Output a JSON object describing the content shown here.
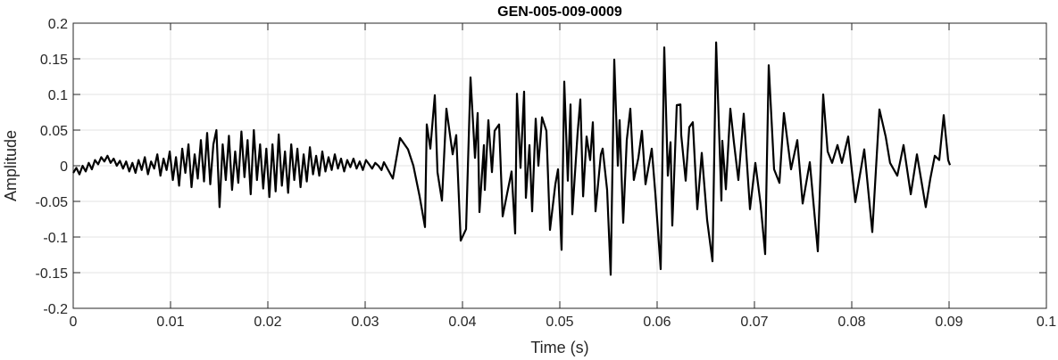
{
  "chart_data": {
    "type": "line",
    "title": "GEN-005-009-0009",
    "xlabel": "Time (s)",
    "ylabel": "Amplitude",
    "xlim": [
      0,
      0.1
    ],
    "ylim": [
      -0.2,
      0.2
    ],
    "grid": true,
    "x_ticks": [
      0,
      0.01,
      0.02,
      0.03,
      0.04,
      0.05,
      0.06,
      0.07,
      0.08,
      0.09,
      0.1
    ],
    "x_tick_labels": [
      "0",
      "0.01",
      "0.02",
      "0.03",
      "0.04",
      "0.05",
      "0.06",
      "0.07",
      "0.08",
      "0.09",
      "0.1"
    ],
    "y_ticks": [
      0.2,
      0.15,
      0.1,
      0.05,
      0,
      -0.05,
      -0.1,
      -0.15,
      -0.2
    ],
    "y_tick_labels": [
      "0.2",
      "0.15",
      "0.1",
      "0.05",
      "0",
      "-0.05",
      "-0.1",
      "-0.15",
      "-0.2"
    ],
    "line_color": "#000000",
    "grid_color": "#e3e3e3",
    "series": [
      {
        "points": [
          [
            0,
            -0.01
          ],
          [
            0.00032,
            -0.003
          ],
          [
            0.00064,
            -0.012
          ],
          [
            0.00096,
            0.0
          ],
          [
            0.00128,
            -0.008
          ],
          [
            0.0016,
            0.004
          ],
          [
            0.00192,
            -0.005
          ],
          [
            0.00224,
            0.008
          ],
          [
            0.00256,
            0.002
          ],
          [
            0.00288,
            0.012
          ],
          [
            0.0032,
            0.006
          ],
          [
            0.00352,
            0.014
          ],
          [
            0.00384,
            0.004
          ],
          [
            0.00416,
            0.01
          ],
          [
            0.00448,
            0.0
          ],
          [
            0.0048,
            0.007
          ],
          [
            0.00512,
            -0.004
          ],
          [
            0.00544,
            0.006
          ],
          [
            0.00576,
            -0.008
          ],
          [
            0.00608,
            0.004
          ],
          [
            0.0064,
            -0.01
          ],
          [
            0.00672,
            0.008
          ],
          [
            0.00704,
            -0.006
          ],
          [
            0.00736,
            0.012
          ],
          [
            0.00768,
            -0.012
          ],
          [
            0.008,
            0.006
          ],
          [
            0.00832,
            -0.004
          ],
          [
            0.00864,
            0.016
          ],
          [
            0.00896,
            -0.014
          ],
          [
            0.00928,
            0.01
          ],
          [
            0.0096,
            -0.006
          ],
          [
            0.00992,
            0.02
          ],
          [
            0.01024,
            -0.02
          ],
          [
            0.01056,
            0.012
          ],
          [
            0.01088,
            -0.028
          ],
          [
            0.0112,
            0.024
          ],
          [
            0.01152,
            -0.01
          ],
          [
            0.01184,
            0.03
          ],
          [
            0.01216,
            -0.03
          ],
          [
            0.01248,
            0.016
          ],
          [
            0.0128,
            -0.018
          ],
          [
            0.01312,
            0.036
          ],
          [
            0.01344,
            -0.022
          ],
          [
            0.01376,
            0.046
          ],
          [
            0.01408,
            -0.026
          ],
          [
            0.0144,
            0.03
          ],
          [
            0.01472,
            0.05
          ],
          [
            0.01504,
            -0.058
          ],
          [
            0.01536,
            0.03
          ],
          [
            0.01568,
            -0.02
          ],
          [
            0.016,
            0.042
          ],
          [
            0.01632,
            -0.034
          ],
          [
            0.01664,
            0.02
          ],
          [
            0.01696,
            -0.024
          ],
          [
            0.01728,
            0.048
          ],
          [
            0.0176,
            -0.016
          ],
          [
            0.01792,
            0.036
          ],
          [
            0.01824,
            -0.04
          ],
          [
            0.01856,
            0.05
          ],
          [
            0.01888,
            -0.02
          ],
          [
            0.0192,
            0.03
          ],
          [
            0.01952,
            -0.032
          ],
          [
            0.01984,
            0.024
          ],
          [
            0.02016,
            -0.044
          ],
          [
            0.02048,
            0.03
          ],
          [
            0.0208,
            -0.036
          ],
          [
            0.02112,
            0.044
          ],
          [
            0.02144,
            -0.028
          ],
          [
            0.02176,
            0.02
          ],
          [
            0.02208,
            -0.038
          ],
          [
            0.0224,
            0.03
          ],
          [
            0.02272,
            -0.02
          ],
          [
            0.02304,
            0.024
          ],
          [
            0.02336,
            -0.03
          ],
          [
            0.02368,
            0.016
          ],
          [
            0.024,
            -0.022
          ],
          [
            0.02432,
            0.026
          ],
          [
            0.02464,
            -0.012
          ],
          [
            0.02496,
            0.014
          ],
          [
            0.02528,
            -0.014
          ],
          [
            0.0256,
            0.02
          ],
          [
            0.02592,
            -0.008
          ],
          [
            0.02624,
            0.012
          ],
          [
            0.02656,
            -0.006
          ],
          [
            0.02688,
            0.016
          ],
          [
            0.0272,
            -0.004
          ],
          [
            0.02752,
            0.01
          ],
          [
            0.02784,
            -0.008
          ],
          [
            0.02816,
            0.008
          ],
          [
            0.02848,
            -0.002
          ],
          [
            0.0288,
            0.01
          ],
          [
            0.02912,
            -0.004
          ],
          [
            0.02944,
            0.006
          ],
          [
            0.02976,
            -0.006
          ],
          [
            0.03008,
            0.008
          ],
          [
            0.0304,
            0.002
          ],
          [
            0.03072,
            -0.004
          ],
          [
            0.03104,
            0.004
          ],
          [
            0.03136,
            0.0
          ],
          [
            0.03168,
            -0.006
          ],
          [
            0.03193,
            0.005
          ],
          [
            0.03284,
            -0.018
          ],
          [
            0.03358,
            0.039
          ],
          [
            0.0344,
            0.023
          ],
          [
            0.03495,
            0.0
          ],
          [
            0.0356,
            -0.043
          ],
          [
            0.03615,
            -0.086
          ],
          [
            0.03633,
            0.058
          ],
          [
            0.0367,
            0.024
          ],
          [
            0.03716,
            0.099
          ],
          [
            0.03743,
            -0.009
          ],
          [
            0.03789,
            -0.049
          ],
          [
            0.03835,
            0.08
          ],
          [
            0.03899,
            0.016
          ],
          [
            0.03936,
            0.043
          ],
          [
            0.03982,
            -0.105
          ],
          [
            0.04037,
            -0.089
          ],
          [
            0.04083,
            0.124
          ],
          [
            0.04128,
            0.011
          ],
          [
            0.04156,
            0.074
          ],
          [
            0.04174,
            -0.065
          ],
          [
            0.0422,
            0.029
          ],
          [
            0.04229,
            -0.034
          ],
          [
            0.04266,
            0.064
          ],
          [
            0.04303,
            -0.009
          ],
          [
            0.0433,
            0.049
          ],
          [
            0.04376,
            0.058
          ],
          [
            0.04413,
            -0.071
          ],
          [
            0.04459,
            -0.039
          ],
          [
            0.04505,
            -0.008
          ],
          [
            0.04541,
            -0.095
          ],
          [
            0.0456,
            0.101
          ],
          [
            0.04596,
            -0.003
          ],
          [
            0.04633,
            0.104
          ],
          [
            0.04651,
            -0.045
          ],
          [
            0.04688,
            0.029
          ],
          [
            0.04716,
            -0.064
          ],
          [
            0.04752,
            0.066
          ],
          [
            0.0478,
            0.0
          ],
          [
            0.04817,
            0.068
          ],
          [
            0.04862,
            0.049
          ],
          [
            0.04899,
            -0.09
          ],
          [
            0.04954,
            -0.026
          ],
          [
            0.04982,
            -0.005
          ],
          [
            0.05018,
            -0.118
          ],
          [
            0.05046,
            0.118
          ],
          [
            0.05083,
            -0.021
          ],
          [
            0.0511,
            0.086
          ],
          [
            0.05128,
            -0.068
          ],
          [
            0.05183,
            0.045
          ],
          [
            0.05211,
            0.093
          ],
          [
            0.05239,
            -0.043
          ],
          [
            0.05275,
            0.041
          ],
          [
            0.05312,
            0.008
          ],
          [
            0.05339,
            0.061
          ],
          [
            0.05367,
            -0.064
          ],
          [
            0.05422,
            0.016
          ],
          [
            0.0544,
            0.024
          ],
          [
            0.05486,
            -0.034
          ],
          [
            0.05523,
            -0.153
          ],
          [
            0.0556,
            0.149
          ],
          [
            0.05596,
            0.0
          ],
          [
            0.05615,
            0.064
          ],
          [
            0.05651,
            -0.08
          ],
          [
            0.05688,
            0.036
          ],
          [
            0.05725,
            0.08
          ],
          [
            0.05761,
            -0.02
          ],
          [
            0.05807,
            0.011
          ],
          [
            0.05844,
            0.049
          ],
          [
            0.05881,
            -0.026
          ],
          [
            0.05945,
            0.024
          ],
          [
            0.05982,
            -0.039
          ],
          [
            0.06037,
            -0.145
          ],
          [
            0.06073,
            0.166
          ],
          [
            0.0611,
            -0.014
          ],
          [
            0.06138,
            0.033
          ],
          [
            0.06156,
            -0.084
          ],
          [
            0.06202,
            0.085
          ],
          [
            0.06239,
            0.086
          ],
          [
            0.06248,
            0.043
          ],
          [
            0.06294,
            -0.021
          ],
          [
            0.0633,
            0.054
          ],
          [
            0.06367,
            0.061
          ],
          [
            0.06413,
            -0.061
          ],
          [
            0.06459,
            0.018
          ],
          [
            0.06514,
            -0.076
          ],
          [
            0.06569,
            -0.134
          ],
          [
            0.06606,
            0.173
          ],
          [
            0.06661,
            -0.049
          ],
          [
            0.0667,
            0.035
          ],
          [
            0.06706,
            -0.033
          ],
          [
            0.06752,
            0.08
          ],
          [
            0.06789,
            0.033
          ],
          [
            0.06835,
            -0.02
          ],
          [
            0.0689,
            0.073
          ],
          [
            0.06954,
            -0.061
          ],
          [
            0.07009,
            0.004
          ],
          [
            0.07064,
            -0.055
          ],
          [
            0.0711,
            -0.124
          ],
          [
            0.07147,
            0.141
          ],
          [
            0.07202,
            -0.005
          ],
          [
            0.07257,
            -0.024
          ],
          [
            0.07303,
            0.074
          ],
          [
            0.07376,
            -0.005
          ],
          [
            0.0744,
            0.036
          ],
          [
            0.07495,
            -0.053
          ],
          [
            0.07569,
            0.005
          ],
          [
            0.07651,
            -0.12
          ],
          [
            0.07706,
            0.1
          ],
          [
            0.07752,
            0.02
          ],
          [
            0.07798,
            0.004
          ],
          [
            0.07853,
            0.029
          ],
          [
            0.07899,
            0.004
          ],
          [
            0.07963,
            0.041
          ],
          [
            0.08037,
            -0.051
          ],
          [
            0.08128,
            0.023
          ],
          [
            0.08211,
            -0.093
          ],
          [
            0.08284,
            0.079
          ],
          [
            0.08349,
            0.041
          ],
          [
            0.08394,
            0.004
          ],
          [
            0.08468,
            -0.014
          ],
          [
            0.08532,
            0.029
          ],
          [
            0.08606,
            -0.04
          ],
          [
            0.0867,
            0.016
          ],
          [
            0.08761,
            -0.058
          ],
          [
            0.08807,
            -0.018
          ],
          [
            0.08853,
            0.014
          ],
          [
            0.08899,
            0.008
          ],
          [
            0.08945,
            0.071
          ],
          [
            0.08991,
            0.008
          ],
          [
            0.09009,
            0.001
          ]
        ]
      }
    ]
  }
}
